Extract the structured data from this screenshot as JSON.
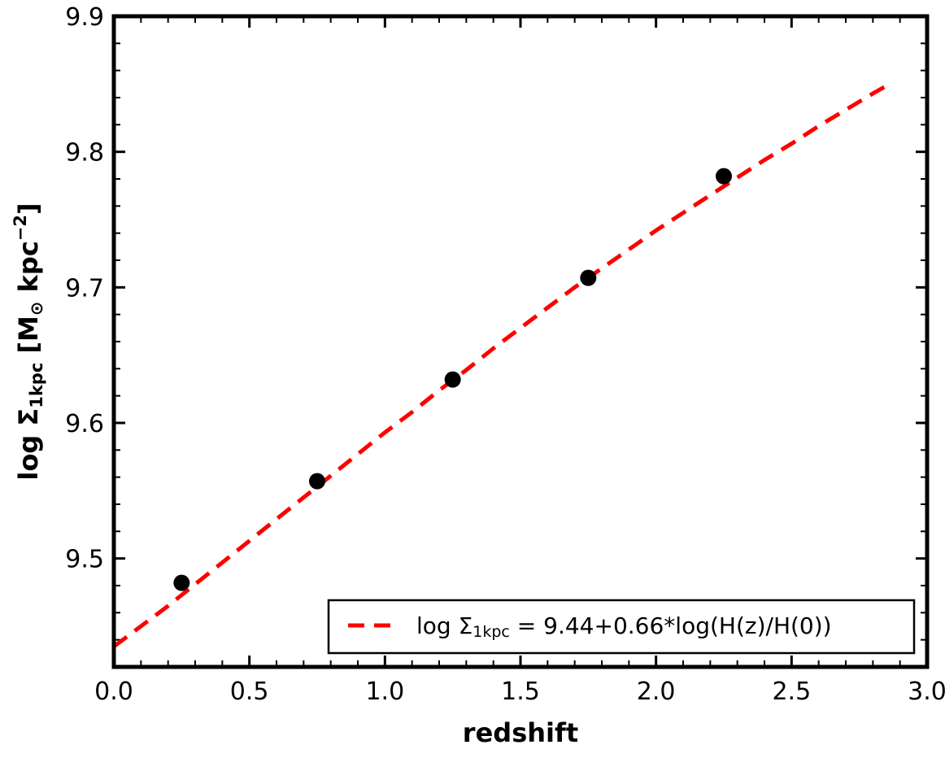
{
  "chart_data": {
    "type": "scatter",
    "title": "",
    "xlabel": "redshift",
    "ylabel": {
      "prefix": "log Σ",
      "subscript": "1kpc",
      "units_open": " [M",
      "units_sub": "⊙",
      "units_mid": " kpc",
      "units_sup": "−2",
      "units_close": "]"
    },
    "xlim": [
      0.0,
      3.0
    ],
    "ylim": [
      9.42,
      9.9
    ],
    "x_ticks": [
      {
        "value": 0.0,
        "label": "0.0"
      },
      {
        "value": 0.5,
        "label": "0.5"
      },
      {
        "value": 1.0,
        "label": "1.0"
      },
      {
        "value": 1.5,
        "label": "1.5"
      },
      {
        "value": 2.0,
        "label": "2.0"
      },
      {
        "value": 2.5,
        "label": "2.5"
      },
      {
        "value": 3.0,
        "label": "3.0"
      }
    ],
    "y_ticks": [
      {
        "value": 9.5,
        "label": "9.5"
      },
      {
        "value": 9.6,
        "label": "9.6"
      },
      {
        "value": 9.7,
        "label": "9.7"
      },
      {
        "value": 9.8,
        "label": "9.8"
      },
      {
        "value": 9.9,
        "label": "9.9"
      }
    ],
    "grid": false,
    "series": [
      {
        "kind": "scatter",
        "color": "#000000",
        "x": [
          0.25,
          0.75,
          1.25,
          1.75,
          2.25
        ],
        "y": [
          9.482,
          9.557,
          9.632,
          9.707,
          9.782
        ]
      },
      {
        "kind": "line",
        "style": "dashed",
        "color": "#ff0000",
        "x": [
          0.0,
          0.1,
          0.2,
          0.3,
          0.4,
          0.5,
          0.6,
          0.7,
          0.8,
          0.9,
          1.0,
          1.1,
          1.2,
          1.3,
          1.4,
          1.5,
          1.6,
          1.7,
          1.8,
          1.9,
          2.0,
          2.1,
          2.2,
          2.3,
          2.4,
          2.5,
          2.6,
          2.7,
          2.8,
          2.87
        ],
        "y": [
          9.435,
          9.45,
          9.465,
          9.481,
          9.497,
          9.513,
          9.529,
          9.545,
          9.561,
          9.577,
          9.593,
          9.608,
          9.624,
          9.639,
          9.655,
          9.67,
          9.685,
          9.7,
          9.714,
          9.728,
          9.742,
          9.755,
          9.768,
          9.781,
          9.794,
          9.806,
          9.819,
          9.831,
          9.843,
          9.851
        ]
      }
    ],
    "legend": {
      "placement": "lower-right",
      "label_prefix": "log Σ",
      "label_sub": "1kpc",
      "label_rest": " = 9.44+0.66*log(H(z)/H(0))"
    }
  }
}
